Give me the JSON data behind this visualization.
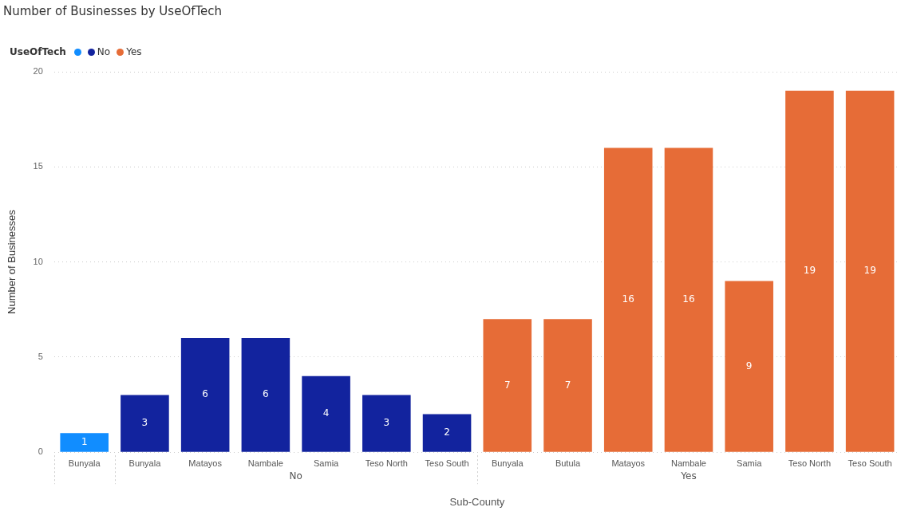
{
  "chart_data": {
    "type": "bar",
    "title": "Number of Businesses by UseOfTech",
    "xlabel": "Sub-County",
    "ylabel": "Number of Businesses",
    "legend_title": "UseOfTech",
    "categories": [
      "Bunyala",
      "Bunyala",
      "Matayos",
      "Nambale",
      "Samia",
      "Teso North",
      "Teso South",
      "Bunyala",
      "Butula",
      "Matayos",
      "Nambale",
      "Samia",
      "Teso North",
      "Teso South"
    ],
    "series": [
      {
        "color": "#118dff",
        "values": [
          1,
          null,
          null,
          null,
          null,
          null,
          null,
          null,
          null,
          null,
          null,
          null,
          null,
          null
        ]
      },
      {
        "name": "No",
        "color": "#12239e",
        "values": [
          null,
          3,
          6,
          6,
          4,
          3,
          2,
          null,
          null,
          null,
          null,
          null,
          null,
          null
        ]
      },
      {
        "name": "Yes",
        "color": "#e66c37",
        "values": [
          null,
          null,
          null,
          null,
          null,
          null,
          null,
          7,
          7,
          16,
          16,
          9,
          19,
          19
        ]
      }
    ],
    "ylim": [
      0,
      20
    ],
    "yticks": [
      0,
      5,
      10,
      15,
      20
    ],
    "grid": "y",
    "legend": "top left",
    "data_labels": true
  }
}
